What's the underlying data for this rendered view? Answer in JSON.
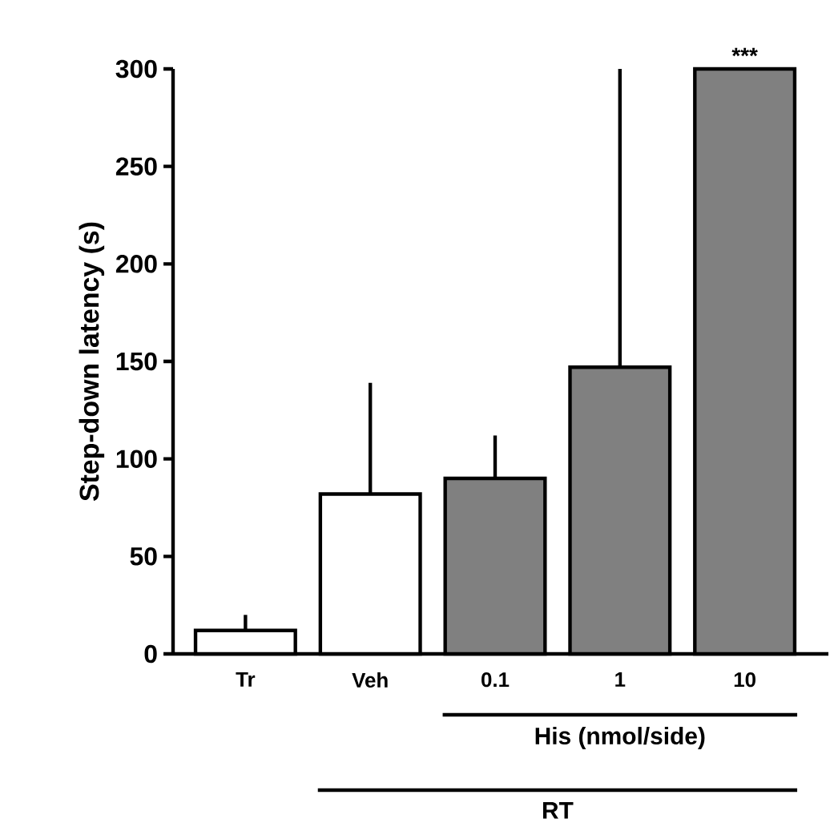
{
  "chart_data": {
    "type": "bar",
    "ylabel": "Step-down latency (s)",
    "categories": [
      "Tr",
      "Veh",
      "0.1",
      "1",
      "10"
    ],
    "values": [
      12,
      82,
      90,
      147,
      300
    ],
    "colors": [
      "#ffffff",
      "#ffffff",
      "#808080",
      "#808080",
      "#808080"
    ],
    "errors": [
      [
        12,
        20
      ],
      [
        82,
        139
      ],
      [
        90,
        112
      ],
      [
        147,
        300
      ],
      null
    ],
    "ylim": [
      0,
      300
    ],
    "yticks": [
      0,
      50,
      100,
      150,
      200,
      250,
      300
    ],
    "annotations": [
      {
        "text": "***",
        "x": "10",
        "y": 300
      },
      "His (nmol/side)",
      "RT"
    ]
  }
}
